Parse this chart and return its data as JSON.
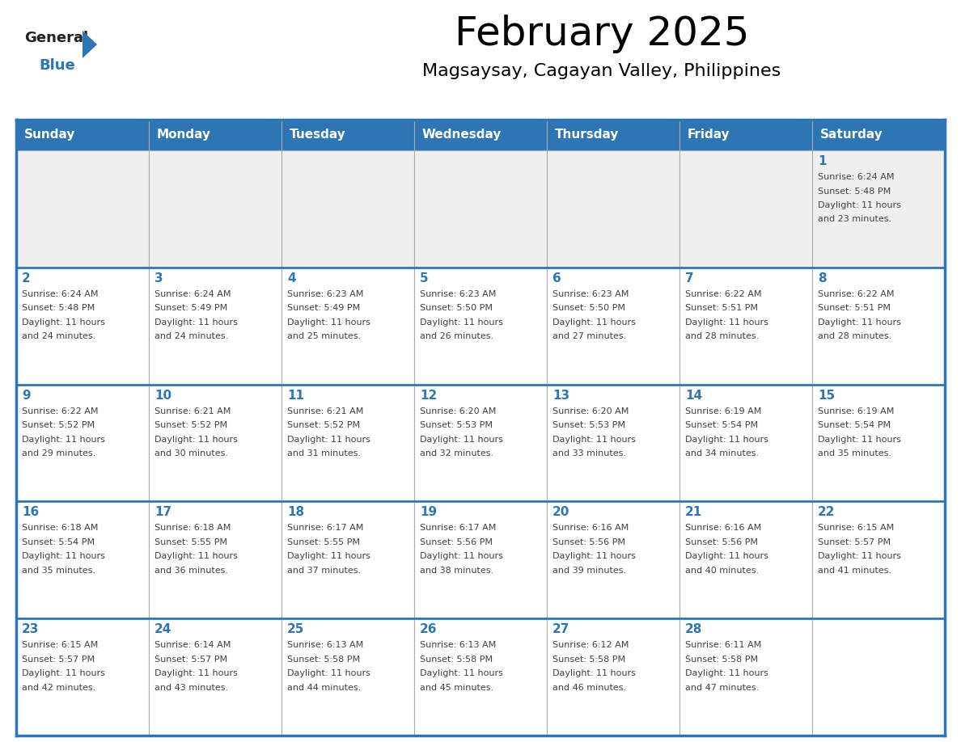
{
  "title": "February 2025",
  "subtitle": "Magsaysay, Cagayan Valley, Philippines",
  "header_bg": "#2E75B6",
  "header_text_color": "#FFFFFF",
  "weekdays": [
    "Sunday",
    "Monday",
    "Tuesday",
    "Wednesday",
    "Thursday",
    "Friday",
    "Saturday"
  ],
  "row1_bg": "#EFEFEF",
  "row_bg": "#FFFFFF",
  "cell_text_color": "#404040",
  "day_number_color": "#2E75B6",
  "border_color": "#2E75B6",
  "grid_line_color": "#AAAAAA",
  "logo_general_color": "#222222",
  "logo_blue_color": "#2E75B6",
  "calendar": [
    [
      null,
      null,
      null,
      null,
      null,
      null,
      1
    ],
    [
      2,
      3,
      4,
      5,
      6,
      7,
      8
    ],
    [
      9,
      10,
      11,
      12,
      13,
      14,
      15
    ],
    [
      16,
      17,
      18,
      19,
      20,
      21,
      22
    ],
    [
      23,
      24,
      25,
      26,
      27,
      28,
      null
    ]
  ],
  "sun_data": {
    "1": {
      "sunrise": "6:24 AM",
      "sunset": "5:48 PM",
      "daylight": "11 hours and 23 minutes."
    },
    "2": {
      "sunrise": "6:24 AM",
      "sunset": "5:48 PM",
      "daylight": "11 hours and 24 minutes."
    },
    "3": {
      "sunrise": "6:24 AM",
      "sunset": "5:49 PM",
      "daylight": "11 hours and 24 minutes."
    },
    "4": {
      "sunrise": "6:23 AM",
      "sunset": "5:49 PM",
      "daylight": "11 hours and 25 minutes."
    },
    "5": {
      "sunrise": "6:23 AM",
      "sunset": "5:50 PM",
      "daylight": "11 hours and 26 minutes."
    },
    "6": {
      "sunrise": "6:23 AM",
      "sunset": "5:50 PM",
      "daylight": "11 hours and 27 minutes."
    },
    "7": {
      "sunrise": "6:22 AM",
      "sunset": "5:51 PM",
      "daylight": "11 hours and 28 minutes."
    },
    "8": {
      "sunrise": "6:22 AM",
      "sunset": "5:51 PM",
      "daylight": "11 hours and 28 minutes."
    },
    "9": {
      "sunrise": "6:22 AM",
      "sunset": "5:52 PM",
      "daylight": "11 hours and 29 minutes."
    },
    "10": {
      "sunrise": "6:21 AM",
      "sunset": "5:52 PM",
      "daylight": "11 hours and 30 minutes."
    },
    "11": {
      "sunrise": "6:21 AM",
      "sunset": "5:52 PM",
      "daylight": "11 hours and 31 minutes."
    },
    "12": {
      "sunrise": "6:20 AM",
      "sunset": "5:53 PM",
      "daylight": "11 hours and 32 minutes."
    },
    "13": {
      "sunrise": "6:20 AM",
      "sunset": "5:53 PM",
      "daylight": "11 hours and 33 minutes."
    },
    "14": {
      "sunrise": "6:19 AM",
      "sunset": "5:54 PM",
      "daylight": "11 hours and 34 minutes."
    },
    "15": {
      "sunrise": "6:19 AM",
      "sunset": "5:54 PM",
      "daylight": "11 hours and 35 minutes."
    },
    "16": {
      "sunrise": "6:18 AM",
      "sunset": "5:54 PM",
      "daylight": "11 hours and 35 minutes."
    },
    "17": {
      "sunrise": "6:18 AM",
      "sunset": "5:55 PM",
      "daylight": "11 hours and 36 minutes."
    },
    "18": {
      "sunrise": "6:17 AM",
      "sunset": "5:55 PM",
      "daylight": "11 hours and 37 minutes."
    },
    "19": {
      "sunrise": "6:17 AM",
      "sunset": "5:56 PM",
      "daylight": "11 hours and 38 minutes."
    },
    "20": {
      "sunrise": "6:16 AM",
      "sunset": "5:56 PM",
      "daylight": "11 hours and 39 minutes."
    },
    "21": {
      "sunrise": "6:16 AM",
      "sunset": "5:56 PM",
      "daylight": "11 hours and 40 minutes."
    },
    "22": {
      "sunrise": "6:15 AM",
      "sunset": "5:57 PM",
      "daylight": "11 hours and 41 minutes."
    },
    "23": {
      "sunrise": "6:15 AM",
      "sunset": "5:57 PM",
      "daylight": "11 hours and 42 minutes."
    },
    "24": {
      "sunrise": "6:14 AM",
      "sunset": "5:57 PM",
      "daylight": "11 hours and 43 minutes."
    },
    "25": {
      "sunrise": "6:13 AM",
      "sunset": "5:58 PM",
      "daylight": "11 hours and 44 minutes."
    },
    "26": {
      "sunrise": "6:13 AM",
      "sunset": "5:58 PM",
      "daylight": "11 hours and 45 minutes."
    },
    "27": {
      "sunrise": "6:12 AM",
      "sunset": "5:58 PM",
      "daylight": "11 hours and 46 minutes."
    },
    "28": {
      "sunrise": "6:11 AM",
      "sunset": "5:58 PM",
      "daylight": "11 hours and 47 minutes."
    }
  }
}
